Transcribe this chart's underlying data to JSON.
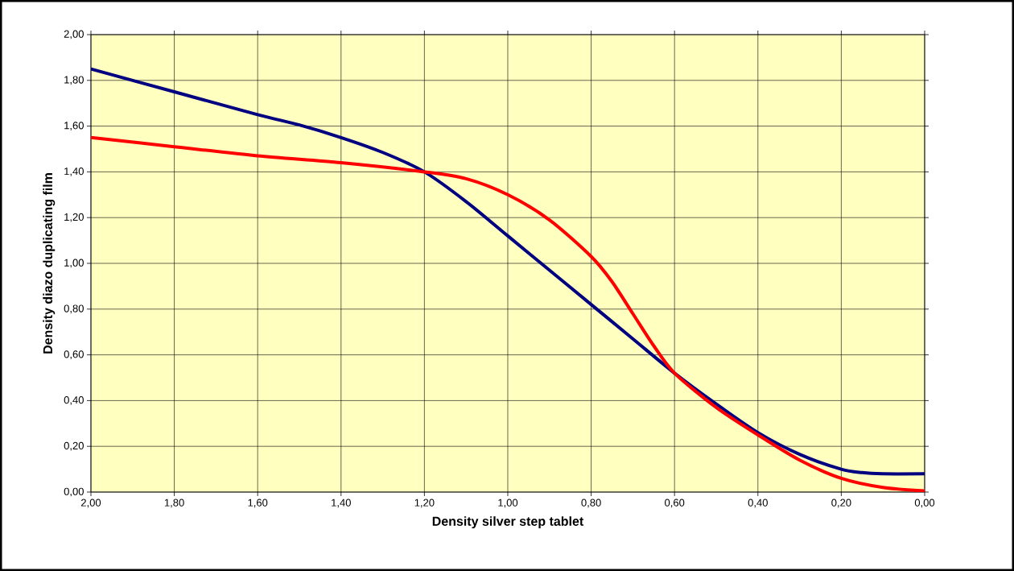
{
  "chart_data": {
    "type": "line",
    "xlabel": "Density silver step tablet",
    "ylabel": "Density diazo duplicating film",
    "xlim": [
      2,
      0
    ],
    "ylim": [
      0,
      2
    ],
    "xticks": [
      {
        "value": 2,
        "label": "2,00"
      },
      {
        "value": 1.8,
        "label": "1,80"
      },
      {
        "value": 1.6,
        "label": "1,60"
      },
      {
        "value": 1.4,
        "label": "1,40"
      },
      {
        "value": 1.2,
        "label": "1,20"
      },
      {
        "value": 1,
        "label": "1,00"
      },
      {
        "value": 0.8,
        "label": "0,80"
      },
      {
        "value": 0.6,
        "label": "0,60"
      },
      {
        "value": 0.4,
        "label": "0,40"
      },
      {
        "value": 0.2,
        "label": "0,20"
      },
      {
        "value": 0,
        "label": "0,00"
      }
    ],
    "yticks": [
      {
        "value": 0,
        "label": "0,00"
      },
      {
        "value": 0.2,
        "label": "0,20"
      },
      {
        "value": 0.4,
        "label": "0,40"
      },
      {
        "value": 0.6,
        "label": "0,60"
      },
      {
        "value": 0.8,
        "label": "0,80"
      },
      {
        "value": 1,
        "label": "1,00"
      },
      {
        "value": 1.2,
        "label": "1,20"
      },
      {
        "value": 1.4,
        "label": "1,40"
      },
      {
        "value": 1.6,
        "label": "1,60"
      },
      {
        "value": 1.8,
        "label": "1,80"
      },
      {
        "value": 2,
        "label": "2,00"
      }
    ],
    "grid": true,
    "marker": "none",
    "line_style": "solid",
    "series": [
      {
        "color": "#000080",
        "x": [
          2.0,
          1.8,
          1.6,
          1.5,
          1.4,
          1.3,
          1.2,
          1.1,
          1.0,
          0.9,
          0.8,
          0.7,
          0.6,
          0.5,
          0.4,
          0.3,
          0.2,
          0.15,
          0.1,
          0.0
        ],
        "values": [
          1.85,
          1.75,
          1.65,
          1.605,
          1.55,
          1.485,
          1.4,
          1.27,
          1.12,
          0.97,
          0.82,
          0.67,
          0.52,
          0.385,
          0.26,
          0.165,
          0.1,
          0.085,
          0.08,
          0.08
        ]
      },
      {
        "color": "#ff0000",
        "x": [
          2.0,
          1.8,
          1.6,
          1.4,
          1.2,
          1.1,
          1.0,
          0.9,
          0.8,
          0.75,
          0.7,
          0.65,
          0.6,
          0.5,
          0.4,
          0.3,
          0.2,
          0.1,
          0.0
        ],
        "values": [
          1.55,
          1.51,
          1.47,
          1.44,
          1.4,
          1.37,
          1.3,
          1.19,
          1.03,
          0.92,
          0.78,
          0.64,
          0.52,
          0.37,
          0.25,
          0.14,
          0.06,
          0.02,
          0.005
        ]
      }
    ]
  }
}
